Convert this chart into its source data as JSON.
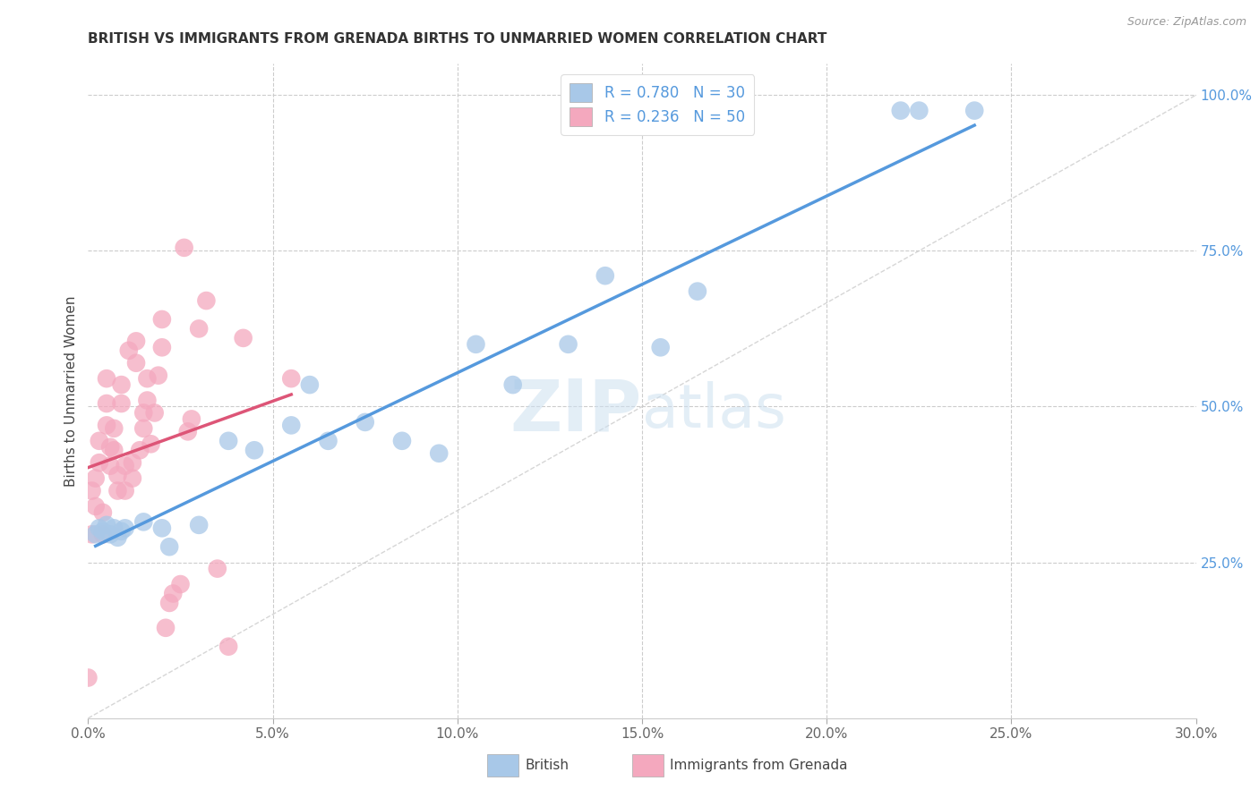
{
  "title": "BRITISH VS IMMIGRANTS FROM GRENADA BIRTHS TO UNMARRIED WOMEN CORRELATION CHART",
  "source": "Source: ZipAtlas.com",
  "ylabel": "Births to Unmarried Women",
  "xlim": [
    0.0,
    0.3
  ],
  "ylim": [
    0.0,
    1.05
  ],
  "xtick_labels": [
    "0.0%",
    "",
    "",
    "",
    "",
    "",
    "",
    "",
    "",
    "",
    "",
    "",
    "5.0%",
    "",
    "",
    "",
    "",
    "",
    "",
    "",
    "",
    "",
    "",
    "",
    "",
    "10.0%",
    "",
    "",
    "",
    "",
    "",
    "",
    "",
    "",
    "",
    "",
    "",
    "",
    "15.0%",
    "",
    "",
    "",
    "",
    "",
    "",
    "",
    "",
    "",
    "",
    "",
    "",
    "20.0%",
    "",
    "",
    "",
    "",
    "",
    "",
    "",
    "",
    "",
    "",
    "",
    "",
    "25.0%",
    "",
    "",
    "",
    "",
    "",
    "",
    "",
    "",
    "",
    "",
    "",
    "",
    "30.0%"
  ],
  "xtick_vals": [
    0.0,
    0.3
  ],
  "ytick_labels_right": [
    "25.0%",
    "50.0%",
    "75.0%",
    "100.0%"
  ],
  "ytick_vals_right": [
    0.25,
    0.5,
    0.75,
    1.0
  ],
  "grid_color": "#cccccc",
  "background_color": "#ffffff",
  "british_color": "#a8c8e8",
  "grenada_color": "#f4a8be",
  "british_R": 0.78,
  "british_N": 30,
  "grenada_R": 0.236,
  "grenada_N": 50,
  "british_line_color": "#5599dd",
  "grenada_line_color": "#dd5577",
  "diagonal_color": "#cccccc",
  "legend_labels": [
    "British",
    "Immigrants from Grenada"
  ],
  "watermark_zip": "ZIP",
  "watermark_atlas": "atlas",
  "british_x": [
    0.002,
    0.003,
    0.004,
    0.005,
    0.006,
    0.007,
    0.008,
    0.009,
    0.01,
    0.015,
    0.02,
    0.022,
    0.03,
    0.038,
    0.045,
    0.055,
    0.06,
    0.065,
    0.075,
    0.085,
    0.095,
    0.105,
    0.115,
    0.13,
    0.14,
    0.155,
    0.165,
    0.22,
    0.225,
    0.24
  ],
  "british_y": [
    0.295,
    0.305,
    0.3,
    0.31,
    0.295,
    0.305,
    0.29,
    0.3,
    0.305,
    0.315,
    0.305,
    0.275,
    0.31,
    0.445,
    0.43,
    0.47,
    0.535,
    0.445,
    0.475,
    0.445,
    0.425,
    0.6,
    0.535,
    0.6,
    0.71,
    0.595,
    0.685,
    0.975,
    0.975,
    0.975
  ],
  "grenada_x": [
    0.0,
    0.001,
    0.001,
    0.002,
    0.002,
    0.003,
    0.003,
    0.004,
    0.004,
    0.005,
    0.005,
    0.005,
    0.006,
    0.006,
    0.007,
    0.007,
    0.008,
    0.008,
    0.009,
    0.009,
    0.01,
    0.01,
    0.011,
    0.012,
    0.012,
    0.013,
    0.013,
    0.014,
    0.015,
    0.015,
    0.016,
    0.016,
    0.017,
    0.018,
    0.019,
    0.02,
    0.02,
    0.021,
    0.022,
    0.023,
    0.025,
    0.026,
    0.027,
    0.028,
    0.03,
    0.032,
    0.035,
    0.038,
    0.042,
    0.055
  ],
  "grenada_y": [
    0.065,
    0.295,
    0.365,
    0.34,
    0.385,
    0.41,
    0.445,
    0.295,
    0.33,
    0.47,
    0.505,
    0.545,
    0.405,
    0.435,
    0.43,
    0.465,
    0.365,
    0.39,
    0.505,
    0.535,
    0.365,
    0.405,
    0.59,
    0.385,
    0.41,
    0.57,
    0.605,
    0.43,
    0.465,
    0.49,
    0.51,
    0.545,
    0.44,
    0.49,
    0.55,
    0.595,
    0.64,
    0.145,
    0.185,
    0.2,
    0.215,
    0.755,
    0.46,
    0.48,
    0.625,
    0.67,
    0.24,
    0.115,
    0.61,
    0.545
  ],
  "british_line_x": [
    0.002,
    0.24
  ],
  "grenada_line_x": [
    0.0,
    0.055
  ]
}
